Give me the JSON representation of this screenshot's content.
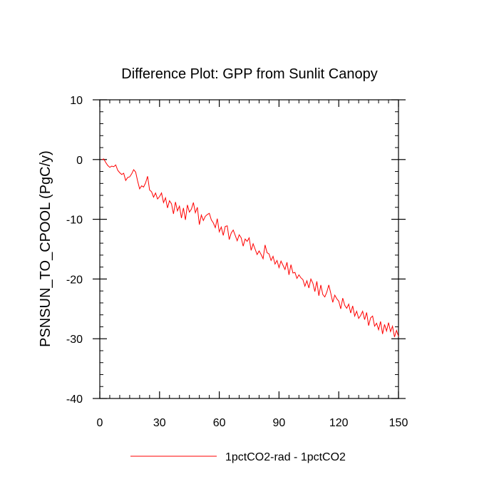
{
  "chart_data": {
    "type": "line",
    "title": "Difference Plot: GPP from Sunlit Canopy",
    "xlabel": "",
    "ylabel": "PSNSUN_TO_CPOOL  (PgC/y)",
    "xlim": [
      0,
      150
    ],
    "ylim": [
      -40,
      10
    ],
    "x_ticks": [
      0,
      30,
      60,
      90,
      120,
      150
    ],
    "y_ticks": [
      10,
      0,
      -10,
      -20,
      -30,
      -40
    ],
    "x_tick_labels": [
      "0",
      "30",
      "60",
      "90",
      "120",
      "150"
    ],
    "y_tick_labels": [
      "10",
      "0",
      "-10",
      "-20",
      "-30",
      "-40"
    ],
    "x_minor_step": 5,
    "y_minor_step": 2,
    "grid": false,
    "legend_position": "bottom-center",
    "series": [
      {
        "name": "1pctCO2-rad - 1pctCO2",
        "color": "#ff0000",
        "x": [
          1,
          2,
          3,
          4,
          5,
          6,
          7,
          8,
          9,
          10,
          11,
          12,
          13,
          14,
          15,
          16,
          17,
          18,
          19,
          20,
          21,
          22,
          23,
          24,
          25,
          26,
          27,
          28,
          29,
          30,
          31,
          32,
          33,
          34,
          35,
          36,
          37,
          38,
          39,
          40,
          41,
          42,
          43,
          44,
          45,
          46,
          47,
          48,
          49,
          50,
          51,
          52,
          53,
          54,
          55,
          56,
          57,
          58,
          59,
          60,
          61,
          62,
          63,
          64,
          65,
          66,
          67,
          68,
          69,
          70,
          71,
          72,
          73,
          74,
          75,
          76,
          77,
          78,
          79,
          80,
          81,
          82,
          83,
          84,
          85,
          86,
          87,
          88,
          89,
          90,
          91,
          92,
          93,
          94,
          95,
          96,
          97,
          98,
          99,
          100,
          101,
          102,
          103,
          104,
          105,
          106,
          107,
          108,
          109,
          110,
          111,
          112,
          113,
          114,
          115,
          116,
          117,
          118,
          119,
          120,
          121,
          122,
          123,
          124,
          125,
          126,
          127,
          128,
          129,
          130,
          131,
          132,
          133,
          134,
          135,
          136,
          137,
          138,
          139,
          140,
          141,
          142,
          143,
          144,
          145,
          146,
          147,
          148,
          149,
          150
        ],
        "y": [
          0.0,
          0.1,
          -0.5,
          -1.0,
          -1.3,
          -1.1,
          -1.2,
          -0.9,
          -1.8,
          -2.2,
          -2.5,
          -2.3,
          -3.5,
          -3.0,
          -2.9,
          -2.4,
          -1.7,
          -2.1,
          -3.6,
          -4.9,
          -4.4,
          -4.6,
          -3.9,
          -2.8,
          -5.1,
          -5.4,
          -6.3,
          -5.6,
          -6.6,
          -6.2,
          -5.6,
          -7.2,
          -6.4,
          -8.1,
          -6.9,
          -7.4,
          -9.1,
          -7.1,
          -8.6,
          -7.8,
          -9.8,
          -8.1,
          -10.1,
          -7.6,
          -8.8,
          -8.3,
          -7.2,
          -8.9,
          -8.0,
          -10.9,
          -9.3,
          -10.2,
          -9.5,
          -9.2,
          -9.0,
          -10.1,
          -10.6,
          -11.4,
          -9.9,
          -12.1,
          -11.3,
          -12.7,
          -11.2,
          -11.1,
          -13.4,
          -12.3,
          -11.8,
          -12.7,
          -13.6,
          -12.6,
          -13.1,
          -14.5,
          -13.3,
          -13.7,
          -13.1,
          -15.2,
          -14.1,
          -15.0,
          -15.9,
          -15.3,
          -15.9,
          -16.6,
          -14.3,
          -15.6,
          -15.8,
          -16.9,
          -16.2,
          -17.5,
          -16.9,
          -18.1,
          -17.0,
          -17.7,
          -18.4,
          -17.2,
          -19.3,
          -17.6,
          -19.0,
          -18.9,
          -19.9,
          -19.3,
          -19.8,
          -20.1,
          -21.2,
          -20.3,
          -21.5,
          -20.0,
          -20.7,
          -22.1,
          -20.4,
          -22.8,
          -21.0,
          -22.6,
          -23.0,
          -22.2,
          -21.0,
          -22.4,
          -23.9,
          -22.7,
          -23.3,
          -23.7,
          -25.0,
          -23.2,
          -24.4,
          -24.9,
          -24.2,
          -25.7,
          -24.5,
          -26.2,
          -25.4,
          -26.6,
          -26.1,
          -25.4,
          -26.8,
          -25.6,
          -27.8,
          -26.5,
          -26.2,
          -27.9,
          -27.4,
          -28.5,
          -27.1,
          -29.2,
          -27.6,
          -28.7,
          -27.3,
          -28.8,
          -27.9,
          -29.7,
          -28.6,
          -29.6
        ]
      }
    ]
  }
}
